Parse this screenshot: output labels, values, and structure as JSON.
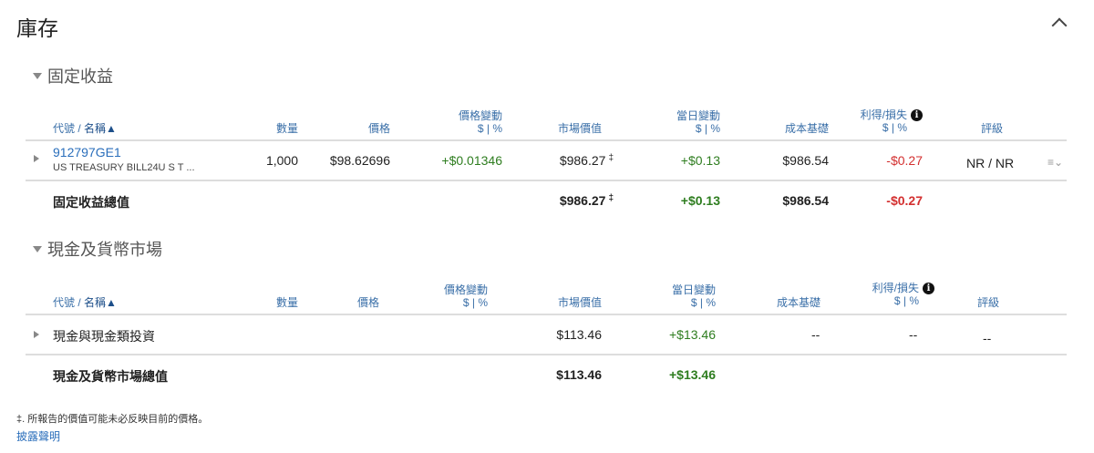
{
  "title": "庫存",
  "colors": {
    "positive": "#2e7d1f",
    "negative": "#d32f2f",
    "link": "#2a6ebb",
    "header": "#3a6fa8"
  },
  "columns": {
    "symbol": "代號",
    "sep": " / ",
    "name": "名稱▲",
    "quantity": "數量",
    "price": "價格",
    "price_change": "價格變動",
    "pct": "$ | %",
    "market_value": "市場價值",
    "day_change": "當日變動",
    "cost_basis": "成本基礎",
    "gain_loss": "利得/損失",
    "info_icon": "i",
    "rating": "評級"
  },
  "fixed_income": {
    "label": "固定收益",
    "rows": [
      {
        "symbol": "912797GE1",
        "description": "US TREASURY BILL24U S T ...",
        "quantity": "1,000",
        "price": "$98.62696",
        "price_change": "+$0.01346",
        "market_value": "$986.27",
        "mv_mark": "‡",
        "day_change": "+$0.13",
        "cost_basis": "$986.54",
        "gain_loss": "-$0.27",
        "rating": "NR / NR",
        "menu_icon": "≡⌄"
      }
    ],
    "total": {
      "label": "固定收益總值",
      "market_value": "$986.27",
      "mv_mark": "‡",
      "day_change": "+$0.13",
      "cost_basis": "$986.54",
      "gain_loss": "-$0.27"
    }
  },
  "cash": {
    "label": "現金及貨幣市場",
    "rows": [
      {
        "name": "現金與現金類投資",
        "market_value": "$113.46",
        "day_change": "+$13.46",
        "cost_basis": "--",
        "gain_loss": "--",
        "rating": "--"
      }
    ],
    "total": {
      "label": "現金及貨幣市場總值",
      "market_value": "$113.46",
      "day_change": "+$13.46"
    }
  },
  "footnote": "‡. 所報告的價值可能未必反映目前的價格。",
  "disclosure_link": "披露聲明"
}
